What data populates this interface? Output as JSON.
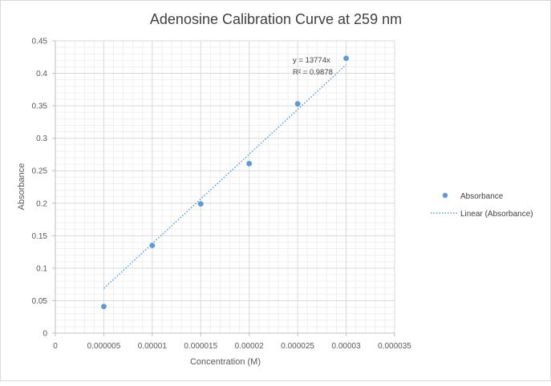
{
  "chart_data": {
    "type": "scatter",
    "title": "Adenosine Calibration Curve at 259 nm",
    "xlabel": "Concentration (M)",
    "ylabel": "Absorbance",
    "xlim": [
      0,
      3.5e-05
    ],
    "ylim": [
      0,
      0.45
    ],
    "x_ticks": [
      "0",
      "0.000005",
      "0.00001",
      "0.000015",
      "0.00002",
      "0.000025",
      "0.00003",
      "0.000035"
    ],
    "y_ticks": [
      "0",
      "0.05",
      "0.1",
      "0.15",
      "0.2",
      "0.25",
      "0.3",
      "0.35",
      "0.4",
      "0.45"
    ],
    "x_tick_values": [
      0,
      5e-06,
      1e-05,
      1.5e-05,
      2e-05,
      2.5e-05,
      3e-05,
      3.5e-05
    ],
    "y_tick_values": [
      0,
      0.05,
      0.1,
      0.15,
      0.2,
      0.25,
      0.3,
      0.35,
      0.4,
      0.45
    ],
    "grid": true,
    "minor_grid": true,
    "legend_position": "right",
    "series": [
      {
        "name": "Absorbance",
        "color": "#5b9bd5",
        "x": [
          5e-06,
          1e-05,
          1.5e-05,
          2e-05,
          2.5e-05,
          3e-05
        ],
        "y": [
          0.041,
          0.135,
          0.199,
          0.261,
          0.353,
          0.423
        ]
      }
    ],
    "trendline": {
      "name": "Linear (Absorbance)",
      "style": "dotted",
      "color": "#5b9bd5",
      "slope": 13774,
      "x_range": [
        5e-06,
        3e-05
      ],
      "equation": "y = 13774x",
      "r_squared": "R² = 0.9878"
    },
    "colors": {
      "gridline": "#d9d9d9",
      "minor_gridline": "#efefef",
      "axis": "#bfbfbf"
    }
  }
}
